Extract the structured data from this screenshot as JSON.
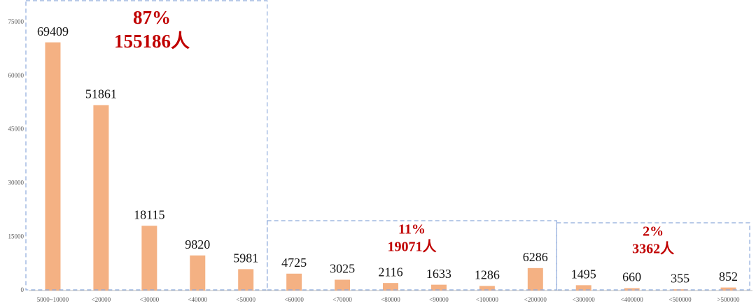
{
  "chart_data": {
    "type": "bar",
    "categories": [
      "5000~10000",
      "<20000",
      "<30000",
      "<40000",
      "<50000",
      "<60000",
      "<70000",
      "<80000",
      "<90000",
      "<100000",
      "<200000",
      "<300000",
      "<400000",
      "<500000",
      ">500000"
    ],
    "values": [
      69409,
      51861,
      18115,
      9820,
      5981,
      4725,
      3025,
      2116,
      1633,
      1286,
      6286,
      1495,
      660,
      355,
      852
    ],
    "color": "#f4b183",
    "ylim": [
      0,
      75000
    ],
    "yticks": [
      0,
      15000,
      30000,
      45000,
      60000,
      75000
    ],
    "grid": false,
    "annotations": [
      [
        "87%",
        "155186人"
      ],
      [
        "11%",
        "19071人"
      ],
      [
        "2%",
        "3362人"
      ]
    ]
  }
}
